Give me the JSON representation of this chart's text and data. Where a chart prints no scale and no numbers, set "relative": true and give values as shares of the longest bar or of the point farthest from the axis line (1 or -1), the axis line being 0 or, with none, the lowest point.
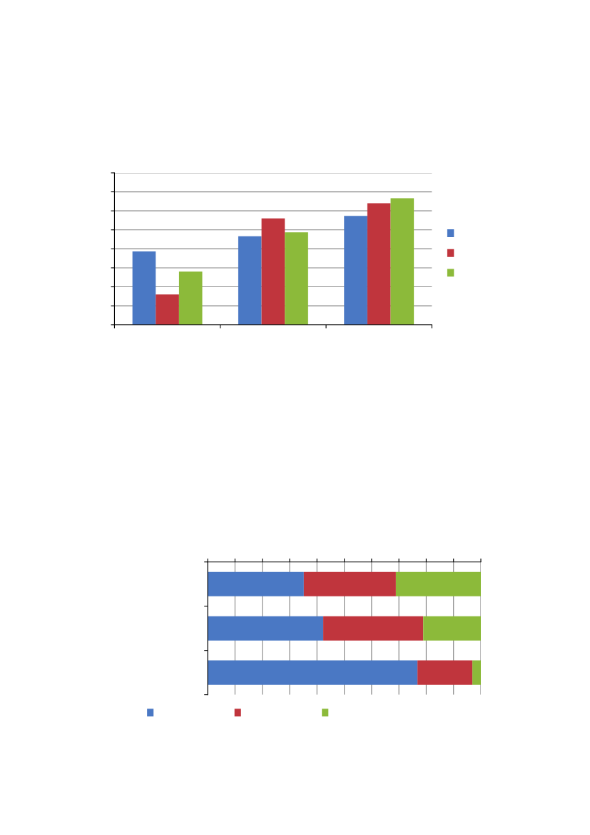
{
  "chart_data": [
    {
      "type": "bar",
      "relative": true,
      "categories": [
        null,
        null,
        null
      ],
      "grid": "y",
      "series": [
        {
          "color": "#4a78c4",
          "values": [
            0.58,
            0.7,
            0.86
          ]
        },
        {
          "color": "#c0353d",
          "values": [
            0.24,
            0.84,
            0.96
          ]
        },
        {
          "color": "#8cba3a",
          "values": [
            0.42,
            0.73,
            1.0
          ]
        }
      ]
    },
    {
      "type": "bar",
      "relative": true,
      "stacked": true,
      "orientation": "horizontal",
      "categories": [
        null,
        null,
        null
      ],
      "grid": "x",
      "series": [
        {
          "color": "#4a78c4",
          "values": [
            0.352,
            0.423,
            0.768
          ]
        },
        {
          "color": "#c0353d",
          "values": [
            0.337,
            0.366,
            0.201
          ]
        },
        {
          "color": "#8cba3a",
          "values": [
            0.311,
            0.211,
            0.031
          ]
        }
      ]
    }
  ]
}
